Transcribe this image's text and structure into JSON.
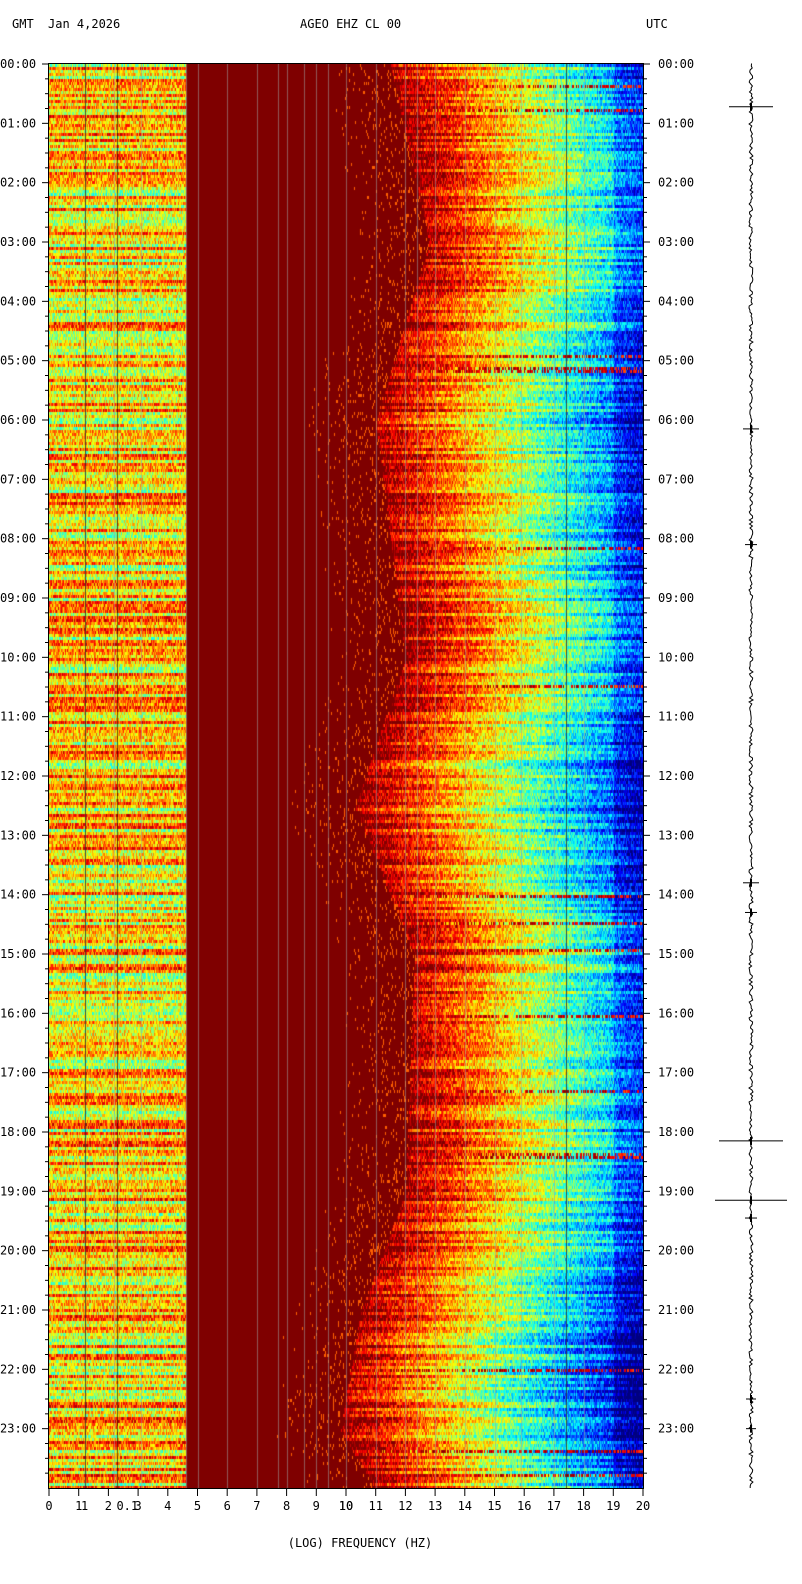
{
  "header": {
    "left_tz": "GMT",
    "date": "Jan 4,2026",
    "station": "AGEO EHZ CL 00",
    "right_tz": "UTC"
  },
  "colors": {
    "background": "#ffffff",
    "low_noise_edge": "#1e3cff",
    "mid_noise": "#40d8c8",
    "high_noise": "#ffe020",
    "saturated": "#8b0000"
  },
  "chart_data": {
    "type": "heatmap",
    "title": "AGEO EHZ CL 00",
    "xlabel": "FREQUENCY (HZ)",
    "xlabel_log": "(LOG)",
    "x_unit": "HZ",
    "xlim": [
      0,
      20
    ],
    "x_ticks": [
      "0",
      "1",
      "2",
      "3",
      "4",
      "5",
      "6",
      "7",
      "8",
      "9",
      "10",
      "11",
      "12",
      "13",
      "14",
      "15",
      "16",
      "17",
      "18",
      "19",
      "20"
    ],
    "x_ticks_log": [
      "0.1",
      "1",
      "10"
    ],
    "y_ticks": [
      "00:00",
      "01:00",
      "02:00",
      "03:00",
      "04:00",
      "05:00",
      "06:00",
      "07:00",
      "08:00",
      "09:00",
      "10:00",
      "11:00",
      "12:00",
      "13:00",
      "14:00",
      "15:00",
      "16:00",
      "17:00",
      "18:00",
      "19:00",
      "20:00",
      "21:00",
      "22:00",
      "23:00"
    ],
    "ylim_hours": [
      0,
      24
    ],
    "transition_frequency_hz": [
      {
        "hour": 0,
        "hz": 11.5
      },
      {
        "hour": 3,
        "hz": 12.8
      },
      {
        "hour": 6,
        "hz": 11.0
      },
      {
        "hour": 10,
        "hz": 12.0
      },
      {
        "hour": 12.5,
        "hz": 10.3
      },
      {
        "hour": 15,
        "hz": 12.3
      },
      {
        "hour": 19,
        "hz": 12.0
      },
      {
        "hour": 21,
        "hz": 10.5
      },
      {
        "hour": 23,
        "hz": 9.8
      },
      {
        "hour": 24,
        "hz": 11.0
      }
    ],
    "seismogram_events_hour": [
      0.72,
      6.15,
      8.1,
      13.8,
      14.3,
      18.15,
      19.15,
      19.45,
      22.5,
      23.0
    ]
  }
}
